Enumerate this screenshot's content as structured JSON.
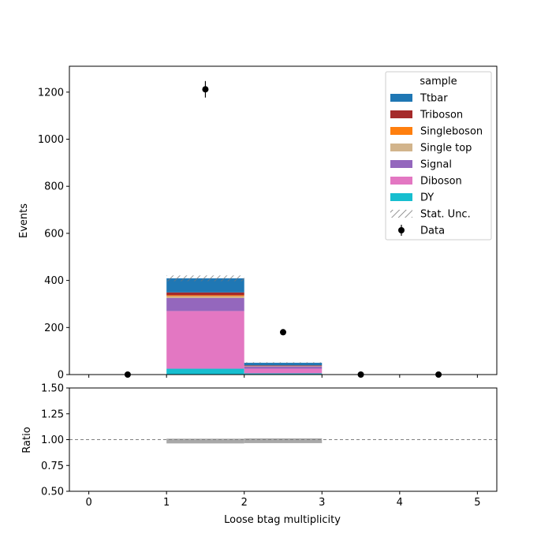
{
  "chart_data": {
    "type": "bar",
    "stacked": true,
    "xlabel": "Loose btag multiplicity",
    "ylabel": "Events",
    "ratio_ylabel": "Ratio",
    "legend_title": "sample",
    "legend_position": "top-right",
    "bins": [
      [
        0,
        1
      ],
      [
        1,
        2
      ],
      [
        2,
        3
      ],
      [
        3,
        4
      ],
      [
        4,
        5
      ]
    ],
    "xlim": [
      -0.25,
      5.25
    ],
    "ylim": [
      0,
      1310
    ],
    "ratio_ylim": [
      0.5,
      1.5
    ],
    "x_ticks": [
      "0",
      "1",
      "2",
      "3",
      "4",
      "5"
    ],
    "y_ticks": [
      "0",
      "200",
      "400",
      "600",
      "800",
      "1000",
      "1200"
    ],
    "ratio_y_ticks": [
      "0.50",
      "0.75",
      "1.00",
      "1.25",
      "1.50"
    ],
    "series": [
      {
        "name": "DY",
        "color": "#17becf",
        "values": [
          0,
          25,
          5,
          0,
          0
        ]
      },
      {
        "name": "Diboson",
        "color": "#e377c2",
        "values": [
          0,
          245,
          20,
          0,
          0
        ]
      },
      {
        "name": "Signal",
        "color": "#9467bd",
        "values": [
          0,
          55,
          10,
          0,
          0
        ]
      },
      {
        "name": "Single top",
        "color": "#d2b48c",
        "values": [
          0,
          8,
          1,
          0,
          0
        ]
      },
      {
        "name": "Singleboson",
        "color": "#ff7f0e",
        "values": [
          0,
          4,
          1,
          0,
          0
        ]
      },
      {
        "name": "Triboson",
        "color": "#a52a2a",
        "values": [
          0,
          12,
          2,
          0,
          0
        ]
      },
      {
        "name": "Ttbar",
        "color": "#1f77b4",
        "values": [
          0,
          60,
          11,
          0,
          0
        ]
      }
    ],
    "stat_unc": {
      "name": "Stat. Unc.",
      "rel_error": [
        0,
        0.03,
        0.04,
        0,
        0
      ]
    },
    "data": {
      "name": "Data",
      "x": [
        0.5,
        1.5,
        2.5,
        3.5,
        4.5
      ],
      "y": [
        0,
        1212,
        180,
        0,
        0
      ],
      "err": [
        0,
        35,
        13,
        0,
        0
      ]
    },
    "ratio_reference": 1.0
  },
  "legend_order": [
    "Ttbar",
    "Triboson",
    "Singleboson",
    "Single top",
    "Signal",
    "Diboson",
    "DY",
    "Stat. Unc.",
    "Data"
  ]
}
